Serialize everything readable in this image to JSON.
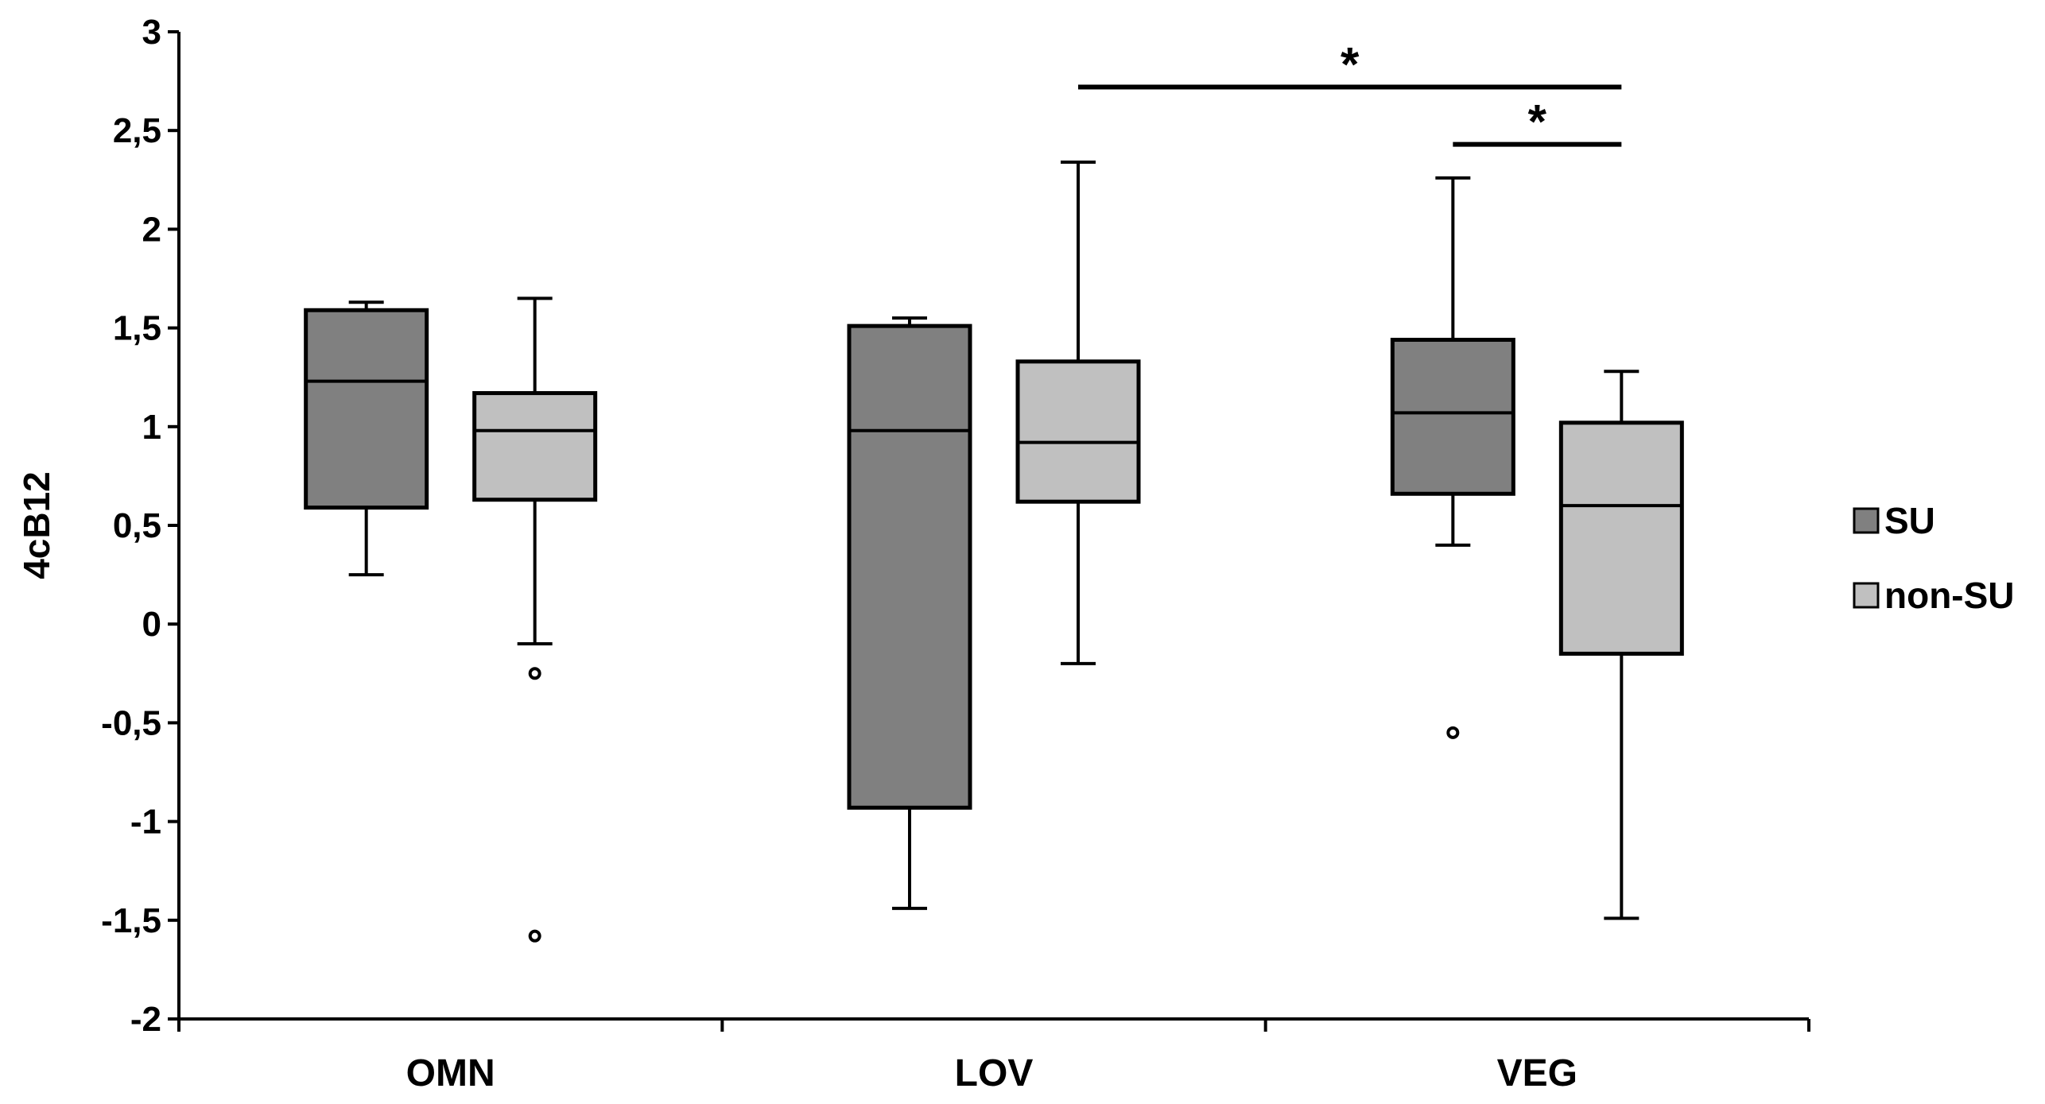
{
  "chart_data": {
    "type": "boxplot",
    "title": "",
    "xlabel": "",
    "ylabel": "4cB12",
    "ylim": [
      -2,
      3
    ],
    "yticks": [
      3,
      2.5,
      2,
      1.5,
      1,
      0.5,
      0,
      -0.5,
      -1,
      -1.5,
      -2
    ],
    "ytick_labels": [
      "3",
      "2,5",
      "2",
      "1,5",
      "1",
      "0,5",
      "0",
      "-0,5",
      "-1",
      "-1,5",
      "-2"
    ],
    "categories": [
      "OMN",
      "LOV",
      "VEG"
    ],
    "legend_position": "right",
    "series": [
      {
        "name": "SU",
        "color": "#808080",
        "boxes": [
          {
            "category": "OMN",
            "whisker_low": 0.25,
            "q1": 0.59,
            "median": 1.23,
            "q3": 1.59,
            "whisker_high": 1.63,
            "outliers": []
          },
          {
            "category": "LOV",
            "whisker_low": -1.44,
            "q1": -0.93,
            "median": 0.98,
            "q3": 1.51,
            "whisker_high": 1.55,
            "outliers": []
          },
          {
            "category": "VEG",
            "whisker_low": 0.4,
            "q1": 0.66,
            "median": 1.07,
            "q3": 1.44,
            "whisker_high": 2.26,
            "outliers": [
              -0.55
            ]
          }
        ]
      },
      {
        "name": "non-SU",
        "color": "#c0c0c0",
        "boxes": [
          {
            "category": "OMN",
            "whisker_low": -0.1,
            "q1": 0.63,
            "median": 0.98,
            "q3": 1.17,
            "whisker_high": 1.65,
            "outliers": [
              -0.25,
              -1.58
            ]
          },
          {
            "category": "LOV",
            "whisker_low": -0.2,
            "q1": 0.62,
            "median": 0.92,
            "q3": 1.33,
            "whisker_high": 2.34,
            "outliers": []
          },
          {
            "category": "VEG",
            "whisker_low": -1.49,
            "q1": -0.15,
            "median": 0.6,
            "q3": 1.02,
            "whisker_high": 1.28,
            "outliers": []
          }
        ]
      }
    ],
    "significance": [
      {
        "from": "LOV non-SU",
        "to": "VEG non-SU",
        "y": 2.72,
        "label": "*"
      },
      {
        "from": "VEG SU",
        "to": "VEG non-SU",
        "y": 2.43,
        "label": "*"
      }
    ]
  }
}
